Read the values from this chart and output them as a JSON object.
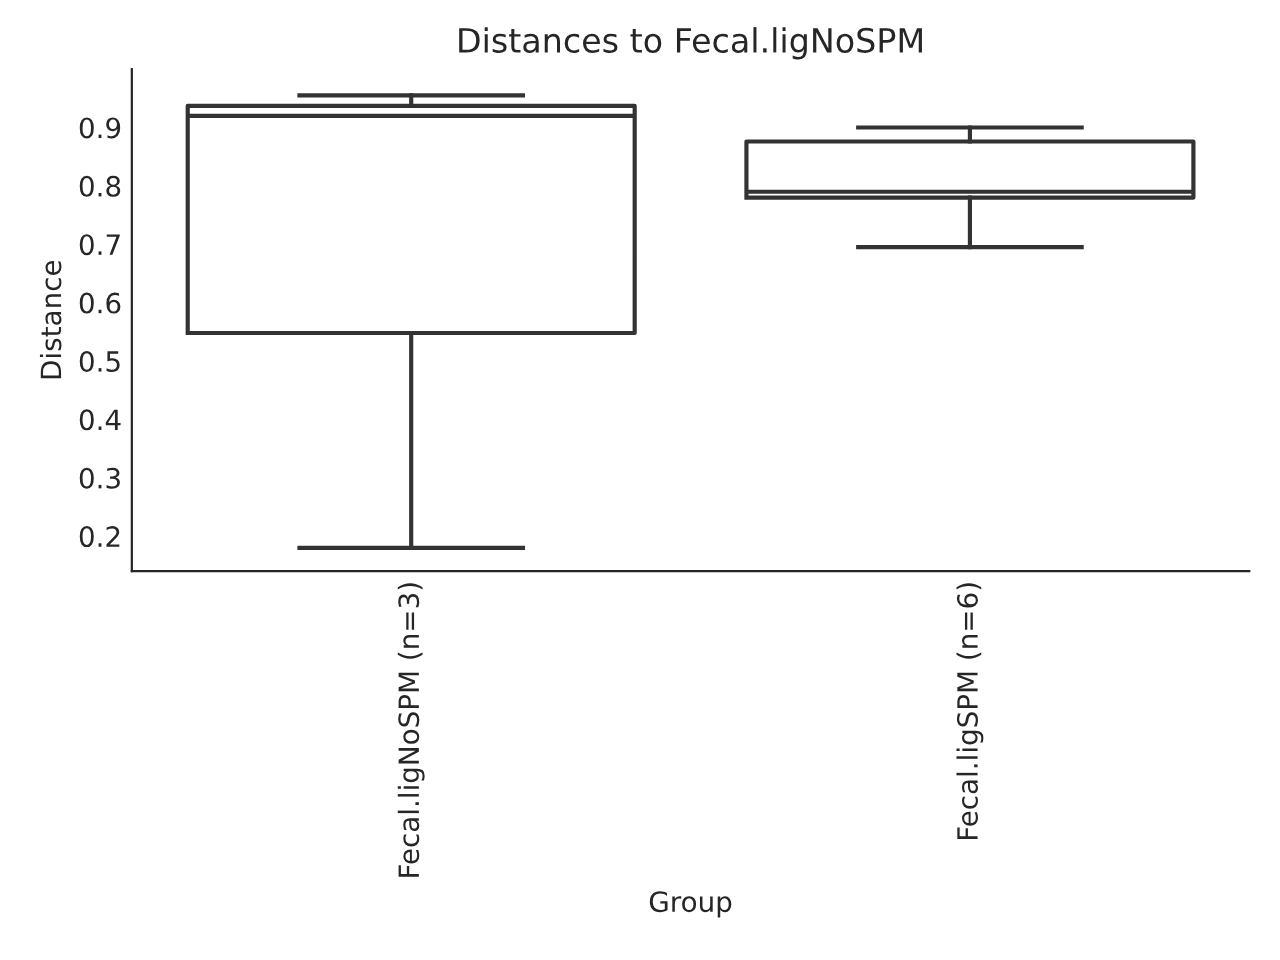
{
  "chart_data": {
    "type": "box",
    "title": "Distances to Fecal.ligNoSPM",
    "xlabel": "Group",
    "ylabel": "Distance",
    "categories": [
      "Fecal.ligNoSPM (n=3)",
      "Fecal.ligSPM (n=6)"
    ],
    "boxes": [
      {
        "low": 0.18,
        "q1": 0.548,
        "median": 0.92,
        "q3": 0.937,
        "high": 0.955
      },
      {
        "low": 0.695,
        "q1": 0.78,
        "median": 0.79,
        "q3": 0.876,
        "high": 0.9
      }
    ],
    "color": "#333333",
    "ylim": [
      0.14,
      1.0
    ],
    "yticks": [
      0.2,
      0.3,
      0.4,
      0.5,
      0.6,
      0.7,
      0.8,
      0.9
    ],
    "grid": false
  }
}
